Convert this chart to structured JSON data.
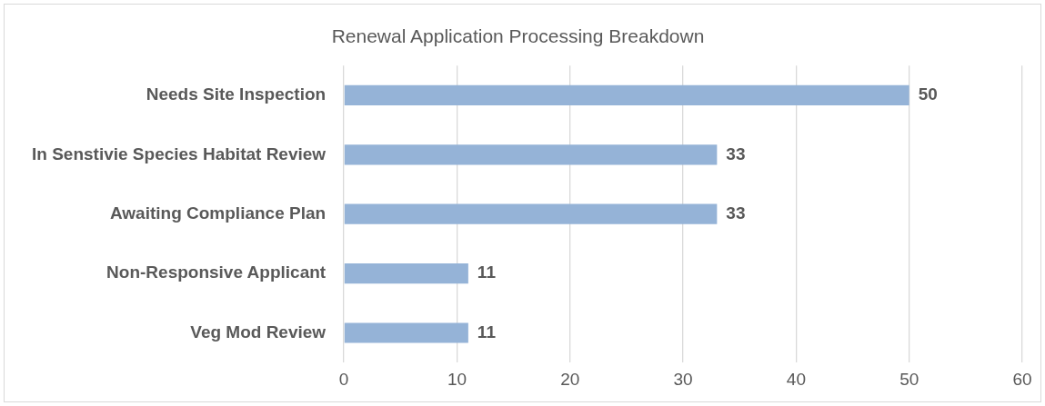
{
  "chart_data": {
    "type": "bar",
    "orientation": "horizontal",
    "title": "Renewal Application Processing Breakdown",
    "categories": [
      "Needs Site Inspection",
      "In Senstivie Species Habitat Review",
      "Awaiting Compliance Plan",
      "Non-Responsive Applicant",
      "Veg Mod Review"
    ],
    "values": [
      50,
      33,
      33,
      11,
      11
    ],
    "color": "#95b3d7",
    "xlim": [
      0,
      60
    ],
    "xticks": [
      0,
      10,
      20,
      30,
      40,
      50,
      60
    ],
    "grid": "x",
    "legend": false,
    "data_labels": true
  }
}
